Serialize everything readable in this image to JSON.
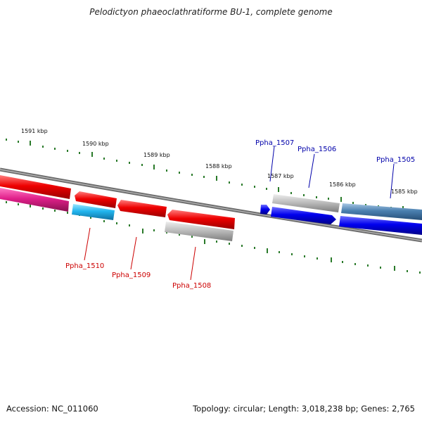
{
  "title": "Pelodictyon phaeoclathratiforme BU-1, complete genome",
  "footer": {
    "accession": "Accession: NC_011060",
    "topology": "Topology: circular; Length: 3,018,238 bp; Genes: 2,765"
  },
  "scale_labels": [
    "1591 kbp",
    "1590 kbp",
    "1589 kbp",
    "1588 kbp",
    "1587 kbp",
    "1586 kbp",
    "1585 kbp"
  ],
  "gene_labels": {
    "forward": [
      "Ppha_1507",
      "Ppha_1506",
      "Ppha_1505"
    ],
    "reverse": [
      "Ppha_1510",
      "Ppha_1509",
      "Ppha_1508"
    ]
  },
  "colors": {
    "backbone": "#7a7a7a",
    "tick": "#2a7a2a",
    "forward_label": "#0000aa",
    "reverse_label": "#cc0000",
    "red_gene": "#ee0000",
    "magenta_gene": "#e0208a",
    "cyan_gene": "#22b5ee",
    "grey_gene": "#bdbdbd",
    "blue_gene": "#0000ee",
    "steelblue_gene": "#4a7faf"
  }
}
